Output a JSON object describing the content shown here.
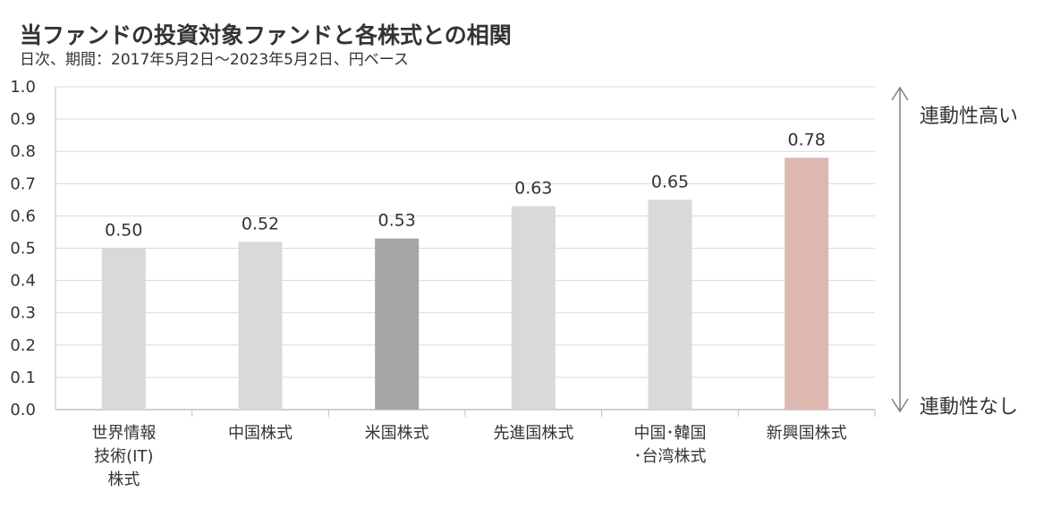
{
  "title": "当ファンドの投資対象ファンドと各株式との相関",
  "subtitle": "日次、期間：2017年5月2日～2023年5月2日、円ベース",
  "chart_data": {
    "type": "bar",
    "title": "当ファンドの投資対象ファンドと各株式との相関",
    "subtitle": "日次、期間：2017年5月2日～2023年5月2日、円ベース",
    "categories": [
      [
        "世界情報",
        "技術(IT)",
        "株式"
      ],
      [
        "中国株式"
      ],
      [
        "米国株式"
      ],
      [
        "先進国株式"
      ],
      [
        "中国･韓国",
        "･台湾株式"
      ],
      [
        "新興国株式"
      ]
    ],
    "values": [
      0.5,
      0.52,
      0.53,
      0.63,
      0.65,
      0.78
    ],
    "value_labels": [
      "0.50",
      "0.52",
      "0.53",
      "0.63",
      "0.65",
      "0.78"
    ],
    "bar_colors": [
      "#d9d9d9",
      "#d9d9d9",
      "#a6a6a6",
      "#d9d9d9",
      "#d9d9d9",
      "#ddb8b0"
    ],
    "ylim": [
      0,
      1.0
    ],
    "yticks": [
      "0.0",
      "0.1",
      "0.2",
      "0.3",
      "0.4",
      "0.5",
      "0.6",
      "0.7",
      "0.8",
      "0.9",
      "1.0"
    ],
    "grid": true,
    "xlabel": "",
    "ylabel": "",
    "annotations": {
      "high": "連動性高い",
      "low": "連動性なし"
    },
    "colors": {
      "grid": "#d9d9d9",
      "axis": "#bfbfbf",
      "arrow": "#7f7f7f",
      "text": "#333333"
    }
  }
}
